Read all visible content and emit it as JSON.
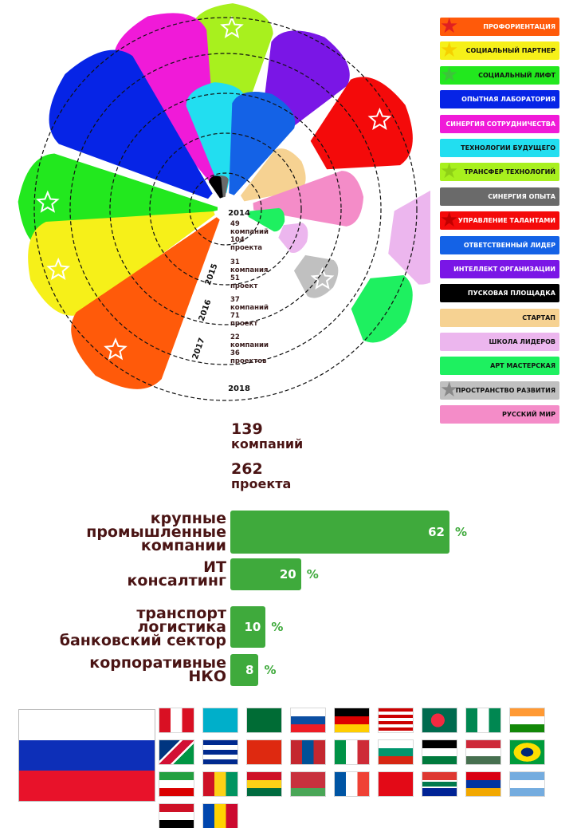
{
  "chart_data": [
    {
      "type": "radial",
      "year_labels": [
        "2014",
        "2015",
        "2016",
        "2017",
        "2018"
      ],
      "ring_stats": [
        {
          "companies": "49",
          "companies_label": "компаний",
          "projects": "104",
          "projects_label": "проекта"
        },
        {
          "companies": "31",
          "companies_label": "компания",
          "projects": "51",
          "projects_label": "проект"
        },
        {
          "companies": "37",
          "companies_label": "компаний",
          "projects": "71",
          "projects_label": "проект"
        },
        {
          "companies": "22",
          "companies_label": "компании",
          "projects": "36",
          "projects_label": "проектов"
        }
      ],
      "legend": [
        {
          "label": "ПРОФОРИЕНТАЦИЯ",
          "color": "#ff5a0a",
          "text_color": "#ffffff",
          "star": true,
          "star_color": "#e02020"
        },
        {
          "label": "СОЦИАЛЬНЫЙ ПАРТНЕР",
          "color": "#f6f019",
          "text_color": "#111111",
          "star": true,
          "star_color": "#f6d000"
        },
        {
          "label": "СОЦИАЛЬНЫЙ ЛИФТ",
          "color": "#22e81e",
          "text_color": "#111111",
          "star": true,
          "star_color": "#3cc43a"
        },
        {
          "label": "ОПЫТНАЯ ЛАБОРАТОРИЯ",
          "color": "#0624e6",
          "text_color": "#ffffff",
          "star": false
        },
        {
          "label": "СИНЕРГИЯ СОТРУДНИЧЕСТВА",
          "color": "#f01ad8",
          "text_color": "#ffffff",
          "star": false
        },
        {
          "label": "ТЕХНОЛОГИИ БУДУЩЕГО",
          "color": "#22def0",
          "text_color": "#111111",
          "star": false
        },
        {
          "label": "ТРАНСФЕР ТЕХНОЛОГИЙ",
          "color": "#a8f01e",
          "text_color": "#111111",
          "star": true,
          "star_color": "#8fd016"
        },
        {
          "label": "СИНЕРГИЯ ОПЫТА",
          "color": "#6a6a6a",
          "text_color": "#ffffff",
          "star": false
        },
        {
          "label": "УПРАВЛЕНИЕ ТАЛАНТАМИ",
          "color": "#f40a0a",
          "text_color": "#ffffff",
          "star": true,
          "star_color": "#c00000"
        },
        {
          "label": "ОТВЕТСТВЕННЫЙ ЛИДЕР",
          "color": "#1462e6",
          "text_color": "#ffffff",
          "star": false
        },
        {
          "label": "ИНТЕЛЛЕКТ ОРГАНИЗАЦИИ",
          "color": "#7a16e6",
          "text_color": "#ffffff",
          "star": false
        },
        {
          "label": "ПУСКОВАЯ ПЛОЩАДКА",
          "color": "#000000",
          "text_color": "#ffffff",
          "star": false
        },
        {
          "label": "СТАРТАП",
          "color": "#f6d292",
          "text_color": "#111111",
          "star": false
        },
        {
          "label": "ШКОЛА ЛИДЕРОВ",
          "color": "#ecb6ee",
          "text_color": "#111111",
          "star": false
        },
        {
          "label": "АРТ МАСТЕРСКАЯ",
          "color": "#1ef060",
          "text_color": "#111111",
          "star": false
        },
        {
          "label": "ПРОСТРАНСТВО РАЗВИТИЯ",
          "color": "#c0c0c0",
          "text_color": "#111111",
          "star": true,
          "star_color": "#888888"
        },
        {
          "label": "РУССКИЙ МИР",
          "color": "#f48cc8",
          "text_color": "#111111",
          "star": false
        }
      ]
    },
    {
      "type": "bar",
      "orientation": "horizontal",
      "categories": [
        [
          "крупные",
          "промышленные",
          "компании"
        ],
        [
          "ИТ",
          "консалтинг"
        ],
        [
          "транспорт",
          "логистика",
          "банковский сектор"
        ],
        [
          "корпоративные",
          "НКО"
        ]
      ],
      "values": [
        62,
        20,
        10,
        8
      ],
      "unit": "%",
      "bar_color": "#3faa3c"
    }
  ],
  "totals": {
    "companies": "139",
    "companies_label": "компаний",
    "projects": "262",
    "projects_label": "проекта"
  },
  "flags": {
    "main": "Russia",
    "others": [
      "Peru",
      "Kazakhstan",
      "Saudi Arabia",
      "Slovakia",
      "Germany",
      "Malaysia",
      "Bangladesh",
      "Nigeria",
      "India",
      "Namibia",
      "Cuba",
      "China",
      "Mongolia",
      "Italy",
      "Bulgaria",
      "Jordan",
      "Hungary",
      "Brazil",
      "Iran",
      "Guinea",
      "Ghana",
      "Belarus",
      "France",
      "Turkey",
      "South Africa",
      "Armenia",
      "Argentina",
      "Egypt",
      "Moldova"
    ]
  }
}
